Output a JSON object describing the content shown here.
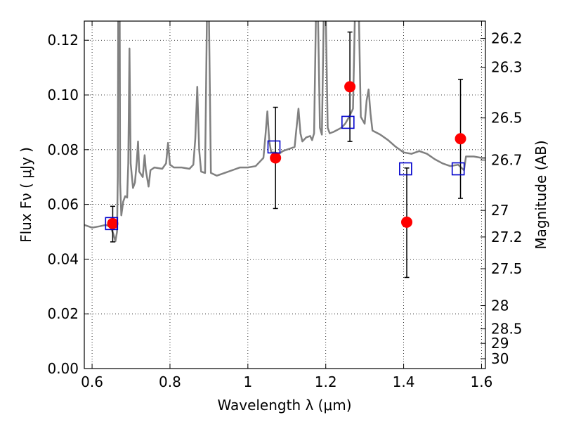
{
  "chart_data": {
    "type": "scatter",
    "xlabel": "Wavelength  λ (μm)",
    "ylabel": "Flux  Fν  ( μJy )",
    "y2label": "Magnitude (AB)",
    "xlim": [
      0.58,
      1.61
    ],
    "ylim": [
      0.0,
      0.127
    ],
    "x_ticks": [
      0.6,
      0.8,
      1.0,
      1.2,
      1.4,
      1.6
    ],
    "x_tick_labels": [
      "0.6",
      "0.8",
      "1",
      "1.2",
      "1.4",
      "1.6"
    ],
    "y_ticks": [
      0.0,
      0.02,
      0.04,
      0.06,
      0.08,
      0.1,
      0.12
    ],
    "y_tick_labels": [
      "0.00",
      "0.02",
      "0.04",
      "0.06",
      "0.08",
      "0.10",
      "0.12"
    ],
    "mag_ticks": [
      {
        "label": "26.2",
        "flux": 0.1207
      },
      {
        "label": "26.3",
        "flux": 0.1101
      },
      {
        "label": "26.5",
        "flux": 0.0916
      },
      {
        "label": "26.7",
        "flux": 0.0762
      },
      {
        "label": "27",
        "flux": 0.0578
      },
      {
        "label": "27.2",
        "flux": 0.0481
      },
      {
        "label": "27.5",
        "flux": 0.0365
      },
      {
        "label": "28",
        "flux": 0.023
      },
      {
        "label": "28.5",
        "flux": 0.0145
      },
      {
        "label": "29",
        "flux": 0.0092
      },
      {
        "label": "30",
        "flux": 0.0036
      }
    ],
    "grid": true,
    "series": [
      {
        "kind": "line",
        "color": "#808080",
        "points": [
          [
            0.58,
            0.0525
          ],
          [
            0.6,
            0.0515
          ],
          [
            0.62,
            0.052
          ],
          [
            0.635,
            0.0525
          ],
          [
            0.645,
            0.052
          ],
          [
            0.65,
            0.0508
          ],
          [
            0.655,
            0.049
          ],
          [
            0.66,
            0.0465
          ],
          [
            0.664,
            0.05
          ],
          [
            0.666,
            0.07
          ],
          [
            0.668,
            0.18
          ],
          [
            0.67,
            0.18
          ],
          [
            0.672,
            0.068
          ],
          [
            0.675,
            0.056
          ],
          [
            0.68,
            0.061
          ],
          [
            0.685,
            0.063
          ],
          [
            0.69,
            0.0625
          ],
          [
            0.693,
            0.075
          ],
          [
            0.696,
            0.117
          ],
          [
            0.699,
            0.075
          ],
          [
            0.705,
            0.066
          ],
          [
            0.71,
            0.068
          ],
          [
            0.715,
            0.076
          ],
          [
            0.718,
            0.083
          ],
          [
            0.721,
            0.072
          ],
          [
            0.73,
            0.07
          ],
          [
            0.735,
            0.078
          ],
          [
            0.738,
            0.0725
          ],
          [
            0.745,
            0.0665
          ],
          [
            0.75,
            0.0725
          ],
          [
            0.76,
            0.0735
          ],
          [
            0.78,
            0.073
          ],
          [
            0.79,
            0.075
          ],
          [
            0.795,
            0.0825
          ],
          [
            0.8,
            0.0745
          ],
          [
            0.81,
            0.0735
          ],
          [
            0.83,
            0.0735
          ],
          [
            0.85,
            0.073
          ],
          [
            0.86,
            0.0745
          ],
          [
            0.865,
            0.084
          ],
          [
            0.87,
            0.103
          ],
          [
            0.875,
            0.08
          ],
          [
            0.88,
            0.072
          ],
          [
            0.89,
            0.0715
          ],
          [
            0.895,
            0.13
          ],
          [
            0.9,
            0.13
          ],
          [
            0.905,
            0.0715
          ],
          [
            0.92,
            0.0705
          ],
          [
            0.94,
            0.0715
          ],
          [
            0.96,
            0.0725
          ],
          [
            0.98,
            0.0735
          ],
          [
            1.0,
            0.0735
          ],
          [
            1.02,
            0.074
          ],
          [
            1.03,
            0.0755
          ],
          [
            1.04,
            0.077
          ],
          [
            1.045,
            0.085
          ],
          [
            1.05,
            0.094
          ],
          [
            1.055,
            0.083
          ],
          [
            1.06,
            0.079
          ],
          [
            1.07,
            0.079
          ],
          [
            1.08,
            0.0785
          ],
          [
            1.09,
            0.0795
          ],
          [
            1.1,
            0.08
          ],
          [
            1.11,
            0.0805
          ],
          [
            1.12,
            0.081
          ],
          [
            1.125,
            0.088
          ],
          [
            1.13,
            0.095
          ],
          [
            1.135,
            0.086
          ],
          [
            1.14,
            0.083
          ],
          [
            1.15,
            0.0845
          ],
          [
            1.16,
            0.085
          ],
          [
            1.165,
            0.0835
          ],
          [
            1.17,
            0.086
          ],
          [
            1.175,
            0.13
          ],
          [
            1.18,
            0.13
          ],
          [
            1.185,
            0.088
          ],
          [
            1.19,
            0.0855
          ],
          [
            1.195,
            0.13
          ],
          [
            1.2,
            0.13
          ],
          [
            1.205,
            0.088
          ],
          [
            1.21,
            0.086
          ],
          [
            1.22,
            0.0865
          ],
          [
            1.24,
            0.088
          ],
          [
            1.25,
            0.0895
          ],
          [
            1.26,
            0.092
          ],
          [
            1.27,
            0.095
          ],
          [
            1.275,
            0.13
          ],
          [
            1.285,
            0.13
          ],
          [
            1.29,
            0.092
          ],
          [
            1.3,
            0.0895
          ],
          [
            1.305,
            0.098
          ],
          [
            1.31,
            0.102
          ],
          [
            1.315,
            0.093
          ],
          [
            1.32,
            0.087
          ],
          [
            1.34,
            0.0855
          ],
          [
            1.36,
            0.0835
          ],
          [
            1.38,
            0.081
          ],
          [
            1.4,
            0.079
          ],
          [
            1.42,
            0.0785
          ],
          [
            1.44,
            0.0795
          ],
          [
            1.46,
            0.0785
          ],
          [
            1.48,
            0.0765
          ],
          [
            1.5,
            0.075
          ],
          [
            1.52,
            0.074
          ],
          [
            1.54,
            0.0745
          ],
          [
            1.555,
            0.0725
          ],
          [
            1.56,
            0.0775
          ],
          [
            1.58,
            0.0775
          ],
          [
            1.6,
            0.077
          ],
          [
            1.61,
            0.077
          ]
        ]
      },
      {
        "kind": "points-with-error",
        "color": "#ff0000",
        "points": [
          {
            "x": 0.653,
            "y": 0.053,
            "yerr_low": 0.0463,
            "yerr_high": 0.0593
          },
          {
            "x": 1.071,
            "y": 0.077,
            "yerr_low": 0.0585,
            "yerr_high": 0.0955
          },
          {
            "x": 1.262,
            "y": 0.103,
            "yerr_low": 0.083,
            "yerr_high": 0.123
          },
          {
            "x": 1.408,
            "y": 0.0535,
            "yerr_low": 0.0333,
            "yerr_high": 0.0733
          },
          {
            "x": 1.546,
            "y": 0.084,
            "yerr_low": 0.0622,
            "yerr_high": 0.1057
          }
        ]
      },
      {
        "kind": "square-markers",
        "color": "#0000cc",
        "points": [
          {
            "x": 0.65,
            "y": 0.053
          },
          {
            "x": 1.067,
            "y": 0.081
          },
          {
            "x": 1.257,
            "y": 0.09
          },
          {
            "x": 1.405,
            "y": 0.073
          },
          {
            "x": 1.54,
            "y": 0.073
          }
        ]
      }
    ]
  }
}
